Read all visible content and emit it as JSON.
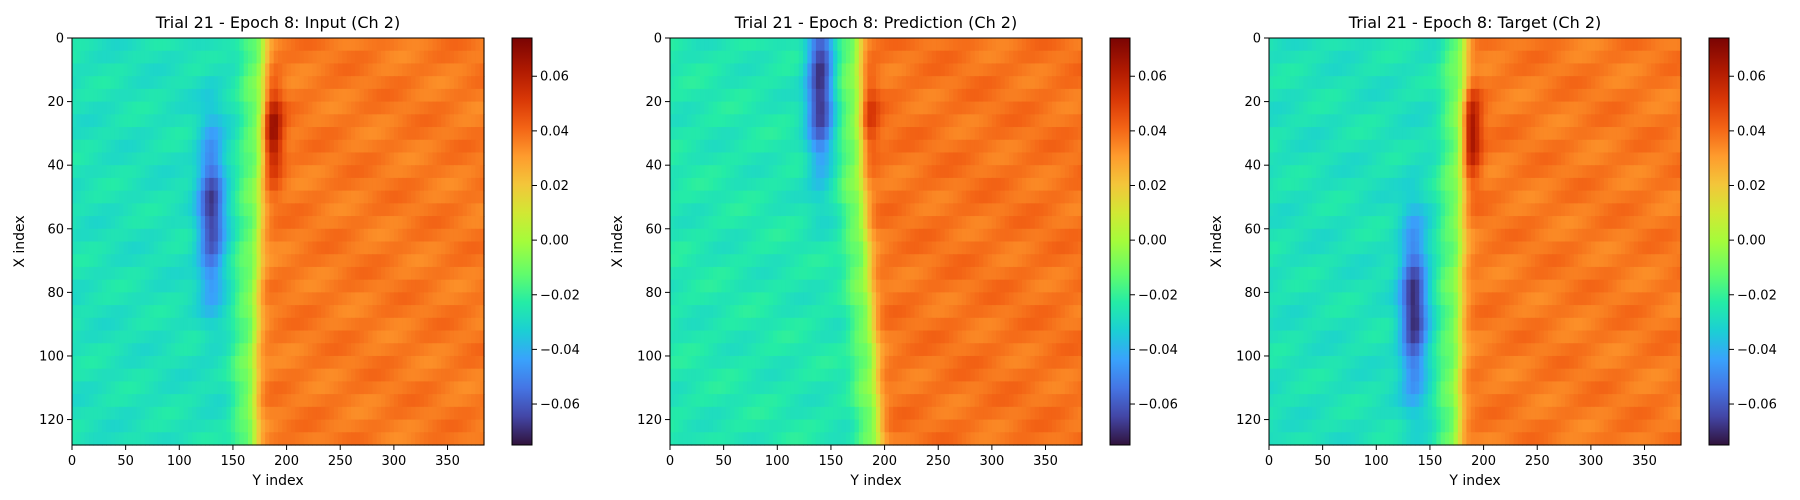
{
  "chart_data": [
    {
      "type": "heatmap",
      "title": "Trial 21 - Epoch 8: Input (Ch 2)",
      "xlabel": "Y index",
      "ylabel": "X index",
      "xlim": [
        0,
        384
      ],
      "ylim": [
        128,
        0
      ],
      "xticks": [
        0,
        50,
        100,
        150,
        200,
        250,
        300,
        350
      ],
      "yticks": [
        0,
        20,
        40,
        60,
        80,
        100,
        120
      ],
      "colorbar": {
        "range": [
          -0.075,
          0.074
        ],
        "ticks": [
          -0.06,
          -0.04,
          -0.02,
          0.0,
          0.02,
          0.04,
          0.06
        ],
        "tick_labels": [
          "−0.06",
          "−0.04",
          "−0.02",
          "0.00",
          "0.02",
          "0.04",
          "0.06"
        ],
        "colormap": "turbo"
      },
      "field": {
        "left_value": -0.027,
        "right_value": 0.037,
        "front_position": [
          [
            0,
            178
          ],
          [
            20,
            178
          ],
          [
            40,
            176
          ],
          [
            60,
            174
          ],
          [
            80,
            172
          ],
          [
            100,
            170
          ],
          [
            128,
            170
          ]
        ],
        "min_value": -0.066,
        "min_location": [
          55,
          130
        ],
        "max_value": 0.07,
        "max_location": [
          30,
          187
        ]
      }
    },
    {
      "type": "heatmap",
      "title": "Trial 21 - Epoch 8: Prediction (Ch 2)",
      "xlabel": "Y index",
      "ylabel": "X index",
      "xlim": [
        0,
        384
      ],
      "ylim": [
        128,
        0
      ],
      "xticks": [
        0,
        50,
        100,
        150,
        200,
        250,
        300,
        350
      ],
      "yticks": [
        0,
        20,
        40,
        60,
        80,
        100,
        120
      ],
      "colorbar": {
        "range": [
          -0.075,
          0.074
        ],
        "ticks": [
          -0.06,
          -0.04,
          -0.02,
          0.0,
          0.02,
          0.04,
          0.06
        ],
        "tick_labels": [
          "−0.06",
          "−0.04",
          "−0.02",
          "0.00",
          "0.02",
          "0.04",
          "0.06"
        ],
        "colormap": "turbo"
      },
      "field": {
        "left_value": -0.025,
        "right_value": 0.038,
        "front_position": [
          [
            0,
            175
          ],
          [
            20,
            178
          ],
          [
            40,
            178
          ],
          [
            60,
            182
          ],
          [
            80,
            186
          ],
          [
            100,
            190
          ],
          [
            128,
            195
          ]
        ],
        "min_value": -0.07,
        "min_location": [
          15,
          140
        ],
        "max_value": 0.055,
        "max_location": [
          25,
          185
        ]
      }
    },
    {
      "type": "heatmap",
      "title": "Trial 21 - Epoch 8: Target (Ch 2)",
      "xlabel": "Y index",
      "ylabel": "X index",
      "xlim": [
        0,
        384
      ],
      "ylim": [
        128,
        0
      ],
      "xticks": [
        0,
        50,
        100,
        150,
        200,
        250,
        300,
        350
      ],
      "yticks": [
        0,
        20,
        40,
        60,
        80,
        100,
        120
      ],
      "colorbar": {
        "range": [
          -0.075,
          0.074
        ],
        "ticks": [
          -0.06,
          -0.04,
          -0.02,
          0.0,
          0.02,
          0.04,
          0.06
        ],
        "tick_labels": [
          "−0.06",
          "−0.04",
          "−0.02",
          "0.00",
          "0.02",
          "0.04",
          "0.06"
        ],
        "colormap": "turbo"
      },
      "field": {
        "left_value": -0.027,
        "right_value": 0.037,
        "front_position": [
          [
            0,
            182
          ],
          [
            20,
            182
          ],
          [
            40,
            180
          ],
          [
            60,
            179
          ],
          [
            80,
            178
          ],
          [
            100,
            177
          ],
          [
            128,
            176
          ]
        ],
        "min_value": -0.07,
        "min_location": [
          85,
          135
        ],
        "max_value": 0.072,
        "max_location": [
          30,
          188
        ]
      }
    }
  ]
}
